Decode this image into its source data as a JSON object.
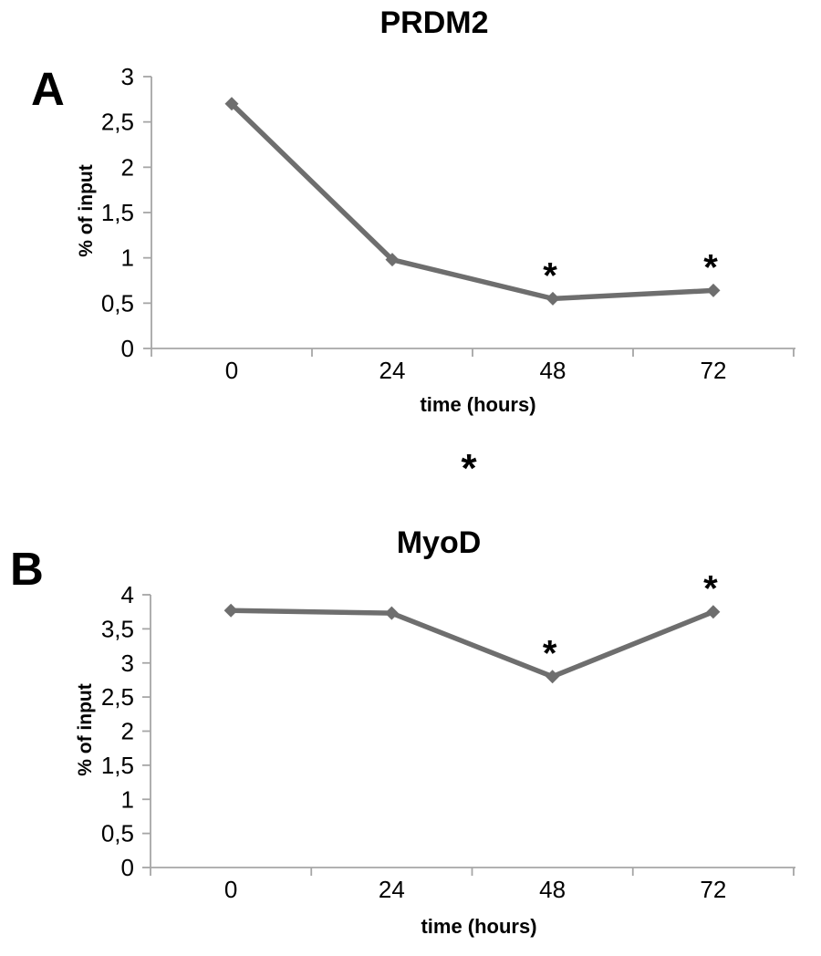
{
  "figure": {
    "between_panels_marker": "*",
    "significance_symbol": "*"
  },
  "colors": {
    "line": "#6e6e6e",
    "marker": "#6e6e6e",
    "axis": "#a6a6a6",
    "text": "#000000"
  },
  "chart_data": [
    {
      "type": "line",
      "panel_label": "A",
      "title": "PRDM2",
      "xlabel": "time (hours)",
      "ylabel": "% of input",
      "categories": [
        "0",
        "24",
        "48",
        "72"
      ],
      "values": [
        2.7,
        0.98,
        0.55,
        0.64
      ],
      "ylim": [
        0,
        3
      ],
      "ytick_step": 0.5,
      "ytick_labels": [
        "0",
        "0,5",
        "1",
        "1,5",
        "2",
        "2,5",
        "3"
      ],
      "decimal_separator": ",",
      "marker": "diamond",
      "grid": false,
      "legend": "none",
      "significant_point_indices": [
        2,
        3
      ]
    },
    {
      "type": "line",
      "panel_label": "B",
      "title": "MyoD",
      "xlabel": "time (hours)",
      "ylabel": "% of input",
      "categories": [
        "0",
        "24",
        "48",
        "72"
      ],
      "values": [
        3.77,
        3.73,
        2.8,
        3.75
      ],
      "ylim": [
        0,
        4
      ],
      "ytick_step": 0.5,
      "ytick_labels": [
        "0",
        "0,5",
        "1",
        "1,5",
        "2",
        "2,5",
        "3",
        "3,5",
        "4"
      ],
      "decimal_separator": ",",
      "marker": "diamond",
      "grid": false,
      "legend": "none",
      "significant_point_indices": [
        2,
        3
      ]
    }
  ]
}
